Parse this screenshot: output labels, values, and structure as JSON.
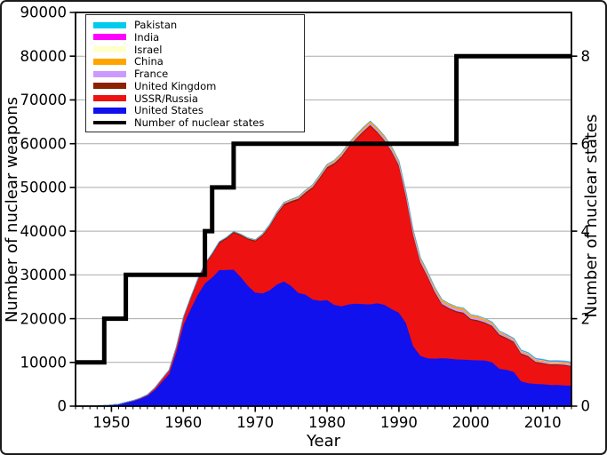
{
  "figure": {
    "xlabel": "Year",
    "ylabel": "Number of nuclear weapons",
    "y2label": "Number of nuclear states"
  },
  "legend": {
    "items": [
      {
        "label": "Pakistan",
        "color": "#00CCEE",
        "line": false
      },
      {
        "label": "India",
        "color": "#FF00FF",
        "line": false
      },
      {
        "label": "Israel",
        "color": "#FFFFCC",
        "line": false
      },
      {
        "label": "China",
        "color": "#FFA500",
        "line": false
      },
      {
        "label": "France",
        "color": "#CC99FF",
        "line": false
      },
      {
        "label": "United Kingdom",
        "color": "#8B2200",
        "line": false
      },
      {
        "label": "USSR/Russia",
        "color": "#EE1111",
        "line": false
      },
      {
        "label": "United States",
        "color": "#1111EE",
        "line": false
      },
      {
        "label": "Number of nuclear states",
        "color": "#000000",
        "line": true
      }
    ]
  },
  "colors": {
    "background": "#FFFFFF",
    "plot_border": "#000000",
    "grid": "#AAAAAA",
    "frame": "#1B1B1B"
  },
  "chart_data": {
    "type": "area",
    "stacked": true,
    "title": "",
    "xlabel": "Year",
    "ylabel": "Number of nuclear weapons",
    "y2label": "Number of nuclear states",
    "x_range": [
      1945,
      2014
    ],
    "ylim": [
      0,
      90000
    ],
    "y2lim": [
      0,
      9
    ],
    "x_ticks": [
      1950,
      1960,
      1970,
      1980,
      1990,
      2000,
      2010
    ],
    "y_ticks": [
      0,
      10000,
      20000,
      30000,
      40000,
      50000,
      60000,
      70000,
      80000,
      90000
    ],
    "y2_ticks": [
      0,
      2,
      4,
      6,
      8
    ],
    "grid": "horizontal",
    "legend_position": "top-left",
    "series": [
      {
        "id": "united-states",
        "name": "United States",
        "color": "#1111EE",
        "points": [
          [
            1945,
            2
          ],
          [
            1946,
            9
          ],
          [
            1947,
            13
          ],
          [
            1948,
            50
          ],
          [
            1949,
            170
          ],
          [
            1950,
            299
          ],
          [
            1951,
            438
          ],
          [
            1952,
            841
          ],
          [
            1953,
            1169
          ],
          [
            1954,
            1703
          ],
          [
            1955,
            2422
          ],
          [
            1956,
            3692
          ],
          [
            1957,
            5543
          ],
          [
            1958,
            7345
          ],
          [
            1959,
            12298
          ],
          [
            1960,
            18638
          ],
          [
            1961,
            22229
          ],
          [
            1962,
            25540
          ],
          [
            1963,
            28133
          ],
          [
            1964,
            29463
          ],
          [
            1965,
            31139
          ],
          [
            1966,
            31175
          ],
          [
            1967,
            31255
          ],
          [
            1968,
            29561
          ],
          [
            1969,
            27552
          ],
          [
            1970,
            26008
          ],
          [
            1971,
            25830
          ],
          [
            1972,
            26516
          ],
          [
            1973,
            27835
          ],
          [
            1974,
            28537
          ],
          [
            1975,
            27519
          ],
          [
            1976,
            25914
          ],
          [
            1977,
            25542
          ],
          [
            1978,
            24418
          ],
          [
            1979,
            24138
          ],
          [
            1980,
            24304
          ],
          [
            1981,
            23208
          ],
          [
            1982,
            22886
          ],
          [
            1983,
            23305
          ],
          [
            1984,
            23459
          ],
          [
            1985,
            23368
          ],
          [
            1986,
            23317
          ],
          [
            1987,
            23575
          ],
          [
            1988,
            23205
          ],
          [
            1989,
            22217
          ],
          [
            1990,
            21392
          ],
          [
            1991,
            19008
          ],
          [
            1992,
            13708
          ],
          [
            1993,
            11511
          ],
          [
            1994,
            10979
          ],
          [
            1995,
            10904
          ],
          [
            1996,
            11011
          ],
          [
            1997,
            10903
          ],
          [
            1998,
            10732
          ],
          [
            1999,
            10685
          ],
          [
            2000,
            10577
          ],
          [
            2001,
            10526
          ],
          [
            2002,
            10457
          ],
          [
            2003,
            10027
          ],
          [
            2004,
            8570
          ],
          [
            2005,
            8360
          ],
          [
            2006,
            7853
          ],
          [
            2007,
            5709
          ],
          [
            2008,
            5273
          ],
          [
            2009,
            5113
          ],
          [
            2010,
            5066
          ],
          [
            2011,
            4897
          ],
          [
            2012,
            4881
          ],
          [
            2013,
            4804
          ],
          [
            2014,
            4717
          ]
        ]
      },
      {
        "id": "ussr-russia",
        "name": "USSR/Russia",
        "color": "#EE1111",
        "points": [
          [
            1949,
            1
          ],
          [
            1950,
            5
          ],
          [
            1951,
            25
          ],
          [
            1952,
            50
          ],
          [
            1953,
            120
          ],
          [
            1954,
            150
          ],
          [
            1955,
            200
          ],
          [
            1956,
            426
          ],
          [
            1957,
            660
          ],
          [
            1958,
            869
          ],
          [
            1959,
            1060
          ],
          [
            1960,
            1605
          ],
          [
            1961,
            2471
          ],
          [
            1962,
            3322
          ],
          [
            1963,
            4238
          ],
          [
            1964,
            5221
          ],
          [
            1965,
            6129
          ],
          [
            1966,
            7089
          ],
          [
            1967,
            8339
          ],
          [
            1968,
            9399
          ],
          [
            1969,
            10538
          ],
          [
            1970,
            11643
          ],
          [
            1971,
            13092
          ],
          [
            1972,
            14478
          ],
          [
            1973,
            15915
          ],
          [
            1974,
            17385
          ],
          [
            1975,
            19055
          ],
          [
            1976,
            21205
          ],
          [
            1977,
            23044
          ],
          [
            1978,
            25393
          ],
          [
            1979,
            27935
          ],
          [
            1980,
            30062
          ],
          [
            1981,
            32049
          ],
          [
            1982,
            33952
          ],
          [
            1983,
            35804
          ],
          [
            1984,
            37431
          ],
          [
            1985,
            39197
          ],
          [
            1986,
            40723
          ],
          [
            1987,
            38859
          ],
          [
            1988,
            37333
          ],
          [
            1989,
            35805
          ],
          [
            1990,
            33417
          ],
          [
            1991,
            28595
          ],
          [
            1992,
            25155
          ],
          [
            1993,
            21101
          ],
          [
            1994,
            18399
          ],
          [
            1995,
            14978
          ],
          [
            1996,
            12085
          ],
          [
            1997,
            11264
          ],
          [
            1998,
            10764
          ],
          [
            1999,
            10451
          ],
          [
            2000,
            9126
          ],
          [
            2001,
            8875
          ],
          [
            2002,
            8414
          ],
          [
            2003,
            8082
          ],
          [
            2004,
            7545
          ],
          [
            2005,
            7000
          ],
          [
            2006,
            6643
          ],
          [
            2007,
            6144
          ],
          [
            2008,
            5951
          ],
          [
            2009,
            4837
          ],
          [
            2010,
            4630
          ],
          [
            2011,
            4480
          ],
          [
            2012,
            4500
          ],
          [
            2013,
            4480
          ],
          [
            2014,
            4300
          ]
        ]
      },
      {
        "id": "united-kingdom",
        "name": "United Kingdom",
        "color": "#8B2200",
        "points": [
          [
            1952,
            1
          ],
          [
            1955,
            14
          ],
          [
            1958,
            22
          ],
          [
            1960,
            105
          ],
          [
            1965,
            310
          ],
          [
            1970,
            280
          ],
          [
            1975,
            350
          ],
          [
            1980,
            350
          ],
          [
            1985,
            300
          ],
          [
            1990,
            300
          ],
          [
            1995,
            300
          ],
          [
            2000,
            280
          ],
          [
            2005,
            280
          ],
          [
            2010,
            225
          ],
          [
            2014,
            215
          ]
        ]
      },
      {
        "id": "france",
        "name": "France",
        "color": "#CC99FF",
        "points": [
          [
            1960,
            0
          ],
          [
            1964,
            4
          ],
          [
            1970,
            36
          ],
          [
            1975,
            188
          ],
          [
            1980,
            250
          ],
          [
            1985,
            360
          ],
          [
            1990,
            505
          ],
          [
            1992,
            540
          ],
          [
            1995,
            500
          ],
          [
            2000,
            470
          ],
          [
            2005,
            350
          ],
          [
            2010,
            300
          ],
          [
            2014,
            300
          ]
        ]
      },
      {
        "id": "china",
        "name": "China",
        "color": "#FFA500",
        "points": [
          [
            1964,
            1
          ],
          [
            1966,
            20
          ],
          [
            1970,
            75
          ],
          [
            1975,
            185
          ],
          [
            1980,
            280
          ],
          [
            1985,
            426
          ],
          [
            1990,
            430
          ],
          [
            2000,
            400
          ],
          [
            2005,
            235
          ],
          [
            2010,
            240
          ],
          [
            2014,
            250
          ]
        ]
      },
      {
        "id": "israel",
        "name": "Israel",
        "color": "#FFFFCC",
        "points": [
          [
            1966,
            0
          ],
          [
            1967,
            2
          ],
          [
            1970,
            8
          ],
          [
            1975,
            20
          ],
          [
            1980,
            31
          ],
          [
            1985,
            42
          ],
          [
            1990,
            53
          ],
          [
            1995,
            63
          ],
          [
            2000,
            72
          ],
          [
            2005,
            78
          ],
          [
            2014,
            80
          ]
        ]
      },
      {
        "id": "india",
        "name": "India",
        "color": "#FF00FF",
        "points": [
          [
            1988,
            0
          ],
          [
            1998,
            13
          ],
          [
            2005,
            44
          ],
          [
            2010,
            80
          ],
          [
            2014,
            110
          ]
        ]
      },
      {
        "id": "pakistan",
        "name": "Pakistan",
        "color": "#00CCEE",
        "points": [
          [
            1987,
            0
          ],
          [
            1998,
            9
          ],
          [
            2005,
            38
          ],
          [
            2010,
            90
          ],
          [
            2014,
            120
          ]
        ]
      }
    ],
    "states_line": {
      "name": "Number of nuclear states",
      "color": "#000000",
      "steps": [
        [
          1945,
          1
        ],
        [
          1949,
          2
        ],
        [
          1952,
          3
        ],
        [
          1963,
          4
        ],
        [
          1964,
          5
        ],
        [
          1967,
          6
        ],
        [
          1998,
          8
        ]
      ],
      "end_year": 2014
    }
  }
}
